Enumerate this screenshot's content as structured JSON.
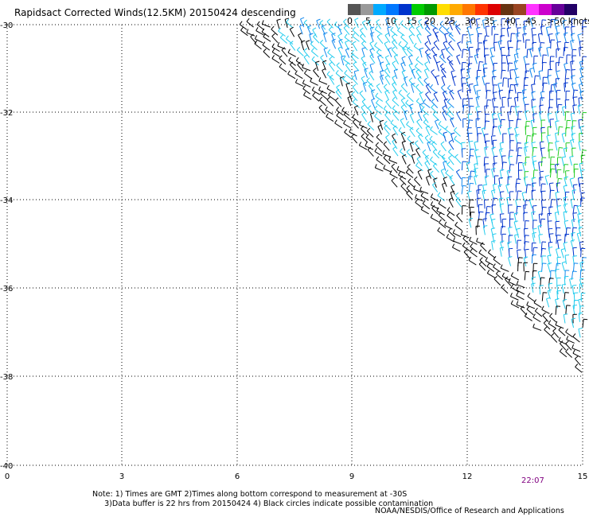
{
  "title": "Rapidsact Corrected Winds(12.5KM) 20150424 descending",
  "legend": {
    "colors": [
      "#555555",
      "#999999",
      "#00aaff",
      "#0077ff",
      "#0033cc",
      "#00cc00",
      "#009900",
      "#ffdd00",
      "#ffaa00",
      "#ff7700",
      "#ff3300",
      "#dd0000",
      "#663311",
      "#994422",
      "#ff33ff",
      "#cc00cc",
      "#660099",
      "#220066"
    ],
    "labels": [
      "0",
      "5",
      "10",
      "15",
      "20",
      "25",
      "30",
      "35",
      "40",
      "45",
      ">50 knots"
    ]
  },
  "axes": {
    "x_ticks": [
      "0",
      "3",
      "6",
      "9",
      "12",
      "15"
    ],
    "y_ticks": [
      "-30",
      "-32",
      "-34",
      "-36",
      "-38",
      "-40"
    ]
  },
  "timestamp": "22:07",
  "notes": {
    "line1": "Note: 1) Times are GMT 2)Times along bottom correspond to measurement at -30S",
    "line2": "3)Data buffer is 22 hrs from 20150424 4) Black circles indicate possible contamination"
  },
  "credit": "NOAA/NESDIS/Office of Research and Applications"
}
